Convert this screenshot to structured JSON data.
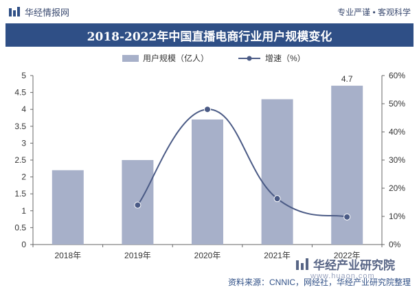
{
  "header": {
    "brand": "华经情报网",
    "tagline": "专业严谨 • 客观科学"
  },
  "title": "2018-2022年中国直播电商行业用户规模变化",
  "legend": {
    "bar_label": "用户规模（亿人）",
    "line_label": "增速（%）"
  },
  "footer": {
    "source": "资料来源：CNNIC，网经社，华经产业研究院整理"
  },
  "watermark": {
    "corner_name": "华经产业研究院",
    "corner_url": "www.huaon.com"
  },
  "colors": {
    "bar": "#a7b0c9",
    "line": "#4a5a85",
    "title_bg": "#2f4f86"
  },
  "chart_data": {
    "type": "bar",
    "categories": [
      "2018年",
      "2019年",
      "2020年",
      "2021年",
      "2022年"
    ],
    "series": [
      {
        "name": "用户规模（亿人）",
        "type": "bar",
        "axis": "left",
        "values": [
          2.2,
          2.5,
          3.7,
          4.3,
          4.7
        ]
      },
      {
        "name": "增速（%）",
        "type": "line",
        "axis": "right",
        "values": [
          null,
          14,
          48,
          16.3,
          9.8
        ]
      }
    ],
    "data_labels": [
      {
        "category": "2022年",
        "series": "用户规模（亿人）",
        "text": "4.7"
      }
    ],
    "y_left": {
      "min": 0,
      "max": 5,
      "ticks": [
        "0",
        "0.5",
        "1",
        "1.5",
        "2",
        "2.5",
        "3",
        "3.5",
        "4",
        "4.5",
        "5"
      ]
    },
    "y_right": {
      "min": 0,
      "max": 60,
      "ticks": [
        "0%",
        "10%",
        "20%",
        "30%",
        "40%",
        "50%",
        "60%"
      ]
    },
    "grid": false,
    "legend_position": "top"
  }
}
